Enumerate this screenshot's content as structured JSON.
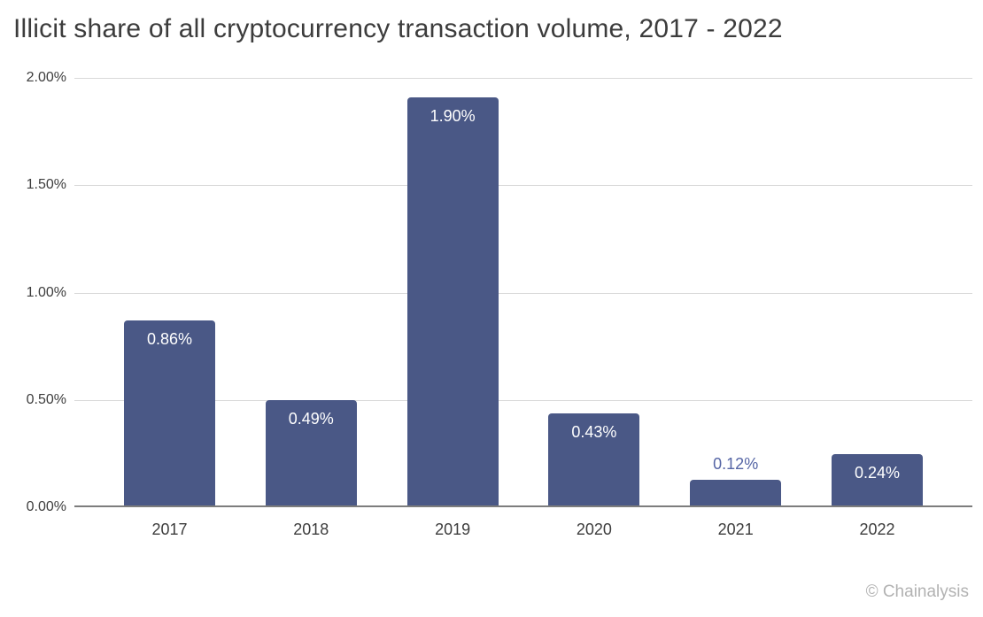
{
  "title": "Illicit share of all cryptocurrency transaction volume, 2017 - 2022",
  "attribution": "© Chainalysis",
  "colors": {
    "bar": "#4a5886",
    "label_inside": "#ffffff",
    "label_outside": "#5565a5",
    "gridline": "#d9d9d9",
    "axis_line": "#7d7d7d",
    "tick_text": "#3d3d3d",
    "title_text": "#3c3c3c",
    "attribution_text": "#b2b2b2"
  },
  "chart_data": {
    "type": "bar",
    "categories": [
      "2017",
      "2018",
      "2019",
      "2020",
      "2021",
      "2022"
    ],
    "values": [
      0.86,
      0.49,
      1.9,
      0.43,
      0.12,
      0.24
    ],
    "value_labels": [
      "0.86%",
      "0.49%",
      "1.90%",
      "0.43%",
      "0.12%",
      "0.24%"
    ],
    "title": "Illicit share of all cryptocurrency transaction volume, 2017 - 2022",
    "xlabel": "",
    "ylabel": "",
    "ylim": [
      0,
      2.0
    ],
    "yticks": [
      "2.00%",
      "1.50%",
      "1.00%",
      "0.50%",
      "0.00%"
    ],
    "grid": true,
    "legend": false
  }
}
